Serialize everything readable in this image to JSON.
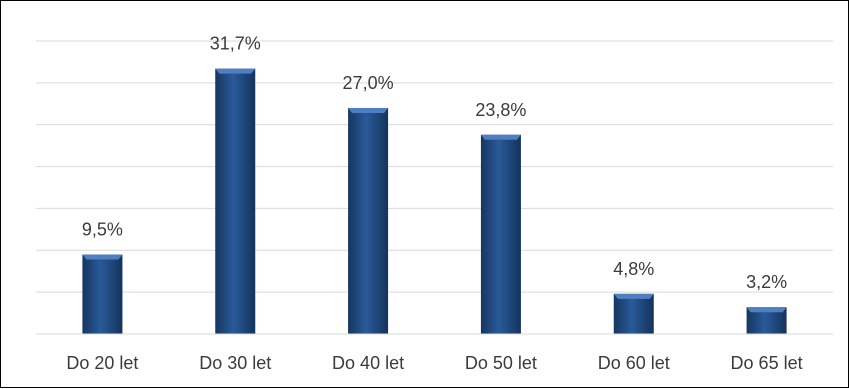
{
  "chart_data": {
    "type": "bar",
    "categories": [
      "Do 20 let",
      "Do 30 let",
      "Do 40 let",
      "Do 50 let",
      "Do 60 let",
      "Do 65 let"
    ],
    "values": [
      9.5,
      31.7,
      27.0,
      23.8,
      4.8,
      3.2
    ],
    "data_labels": [
      "9,5%",
      "31,7%",
      "27,0%",
      "23,8%",
      "4,8%",
      "3,2%"
    ],
    "ylim": [
      0,
      35
    ],
    "grid": true,
    "bar_color": "#1f4e8c",
    "bar_highlight_color": "#4f7fc0"
  }
}
